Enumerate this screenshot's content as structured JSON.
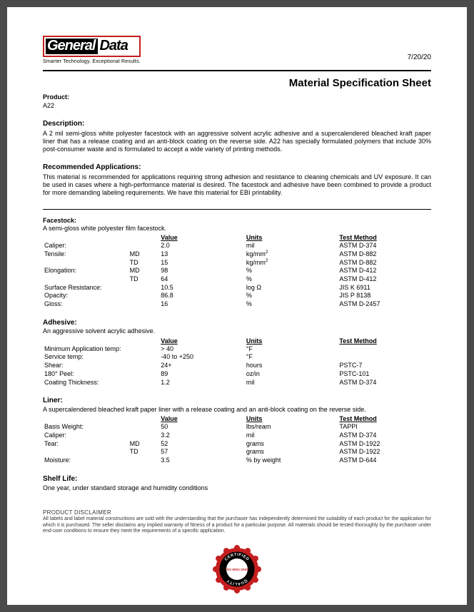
{
  "header": {
    "logo_general": "General",
    "logo_data": "Data",
    "tagline": "Smarter Technology. Exceptional Results.",
    "date": "7/20/20",
    "doc_title": "Material Specification Sheet"
  },
  "product": {
    "label": "Product:",
    "value": "A22"
  },
  "description": {
    "label": "Description:",
    "text": "A 2 mil semi-gloss white polyester facestock with an aggressive solvent acrylic adhesive and a supercalendered bleached kraft paper liner that has a release coating and an anti-block coating on the reverse side.  A22 has specially formulated polymers that include 30% post-consumer waste and is formulated to accept a wide variety of printing methods."
  },
  "recommended": {
    "label": "Recommended Applications:",
    "text": "This material is recommended for applications requiring strong adhesion and resistance to cleaning chemicals and UV exposure. It can be used in cases where a high-performance material is desired. The facestock and adhesive have been combined to provide a product for more demanding labeling requirements. We have this material for EBI printability."
  },
  "facestock": {
    "label": "Facestock:",
    "intro": "A semi-gloss white polyester film facestock.",
    "headers": {
      "value": "Value",
      "units": "Units",
      "method": "Test Method"
    },
    "rows": [
      {
        "label": "Caliper:",
        "sub": "",
        "value": "2.0",
        "units": "mil",
        "method": "ASTM D-374"
      },
      {
        "label": "Tensile:",
        "sub": "MD",
        "value": "13",
        "units_html": "kg/mm<sup>2</sup>",
        "method": "ASTM D-882"
      },
      {
        "label": "",
        "sub": "TD",
        "value": "15",
        "units_html": "kg/mm<sup>2</sup>",
        "method": "ASTM D-882"
      },
      {
        "label": "Elongation:",
        "sub": "MD",
        "value": "98",
        "units": "%",
        "method": "ASTM D-412"
      },
      {
        "label": "",
        "sub": "TD",
        "value": "64",
        "units": "%",
        "method": "ASTM D-412"
      },
      {
        "label": "Surface Resistance:",
        "sub": "",
        "value": "10.5",
        "units": "log Ω",
        "method": "JIS K 6911"
      },
      {
        "label": "Opacity:",
        "sub": "",
        "value": "86.8",
        "units": "%",
        "method": "JIS P 8138"
      },
      {
        "label": "Gloss:",
        "sub": "",
        "value": "16",
        "units": "%",
        "method": "ASTM D-2457"
      }
    ]
  },
  "adhesive": {
    "label": "Adhesive:",
    "intro": "An aggressive solvent acrylic adhesive.",
    "headers": {
      "value": "Value",
      "units": "Units",
      "method": "Test Method"
    },
    "rows": [
      {
        "label": "Minimum Application temp:",
        "value": "> 40",
        "units": "°F",
        "method": ""
      },
      {
        "label": "Service temp:",
        "value": "-40 to +250",
        "units": "°F",
        "method": ""
      },
      {
        "label": "Shear:",
        "value": "24+",
        "units": "hours",
        "method": "PSTC-7"
      },
      {
        "label": "180° Peel:",
        "value": "89",
        "units": "oz/in",
        "method": "PSTC-101"
      },
      {
        "label": "Coating Thickness:",
        "value": "1.2",
        "units": "mil",
        "method": "ASTM D-374"
      }
    ]
  },
  "liner": {
    "label": "Liner:",
    "intro": "A supercalendered bleached kraft paper liner with a release coating and an anti-block coating on the reverse side.",
    "headers": {
      "value": "Value",
      "units": "Units",
      "method": "Test Method"
    },
    "rows": [
      {
        "label": "Basis Weight:",
        "sub": "",
        "value": "50",
        "units": "lbs/ream",
        "method": "TAPPI"
      },
      {
        "label": "Caliper:",
        "sub": "",
        "value": "3.2",
        "units": "mil",
        "method": "ASTM D-374"
      },
      {
        "label": "Tear:",
        "sub": "MD",
        "value": "52",
        "units": "grams",
        "method": "ASTM D-1922"
      },
      {
        "label": "",
        "sub": "TD",
        "value": "57",
        "units": "grams",
        "method": "ASTM D-1922"
      },
      {
        "label": "Moisture:",
        "sub": "",
        "value": "3.5",
        "units": "% by weight",
        "method": "ASTM D-644"
      }
    ]
  },
  "shelf": {
    "label": "Shelf Life:",
    "text": "One year, under standard storage and humidity conditions"
  },
  "disclaimer": {
    "head": "PRODUCT DISCLAIMER",
    "text": "All labels and label material constructions are sold with the understanding that the purchaser has independently determined the suitability of each product for the application for which it is purchased. The seller disclaims any implied warranty of fitness of a product for a particular purpose. All materials should be tested thoroughly by the purchaser under end-user conditions to ensure they meet the requirements of a specific application."
  },
  "badge": {
    "top_text": "CERTIFIED",
    "center_text": "ISO 9001:2000",
    "bottom_text": "QUALITY",
    "outer_color": "#c41e1e",
    "ring_color": "#000",
    "center_bg": "#fff"
  }
}
